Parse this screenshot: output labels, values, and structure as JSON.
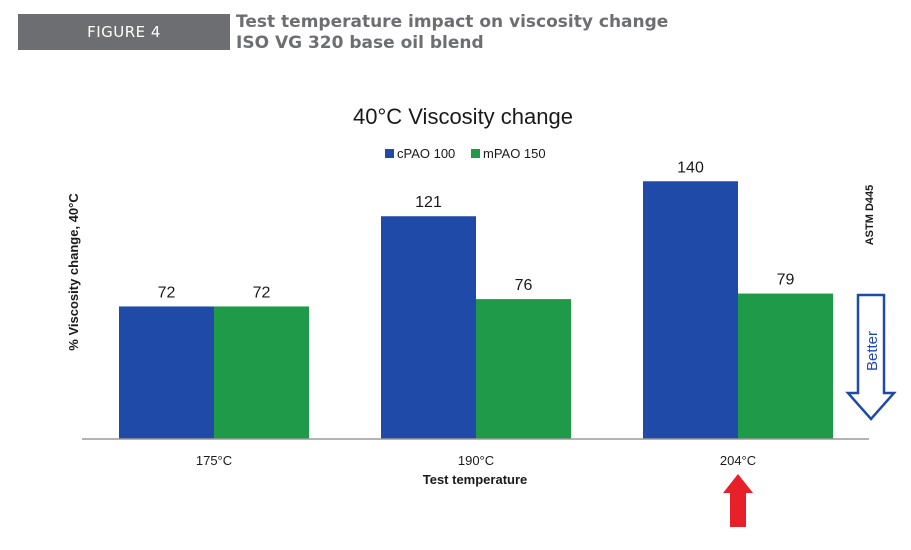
{
  "figure": {
    "label": "FIGURE 4",
    "title_line1": "Test temperature impact on viscosity change",
    "title_line2": "ISO VG 320 base oil blend"
  },
  "chart_data": {
    "type": "bar",
    "title": "40°C Viscosity change",
    "categories": [
      "175°C",
      "190°C",
      "204°C"
    ],
    "series": [
      {
        "name": "cPAO 100",
        "color": "#1f4aa8",
        "values": [
          72,
          121,
          140
        ]
      },
      {
        "name": "mPAO 150",
        "color": "#1f9a48",
        "values": [
          72,
          76,
          79
        ]
      }
    ],
    "xlabel": "Test temperature",
    "ylabel": "% Viscosity change, 40°C",
    "ylim": [
      0,
      160
    ],
    "grid": false,
    "legend": "top-center",
    "annotations": {
      "method": "ASTM D445",
      "better": "Better",
      "better_color": "#1f4aa8",
      "highlight_arrow_color": "#e8202a",
      "highlight_category": "204°C"
    }
  }
}
